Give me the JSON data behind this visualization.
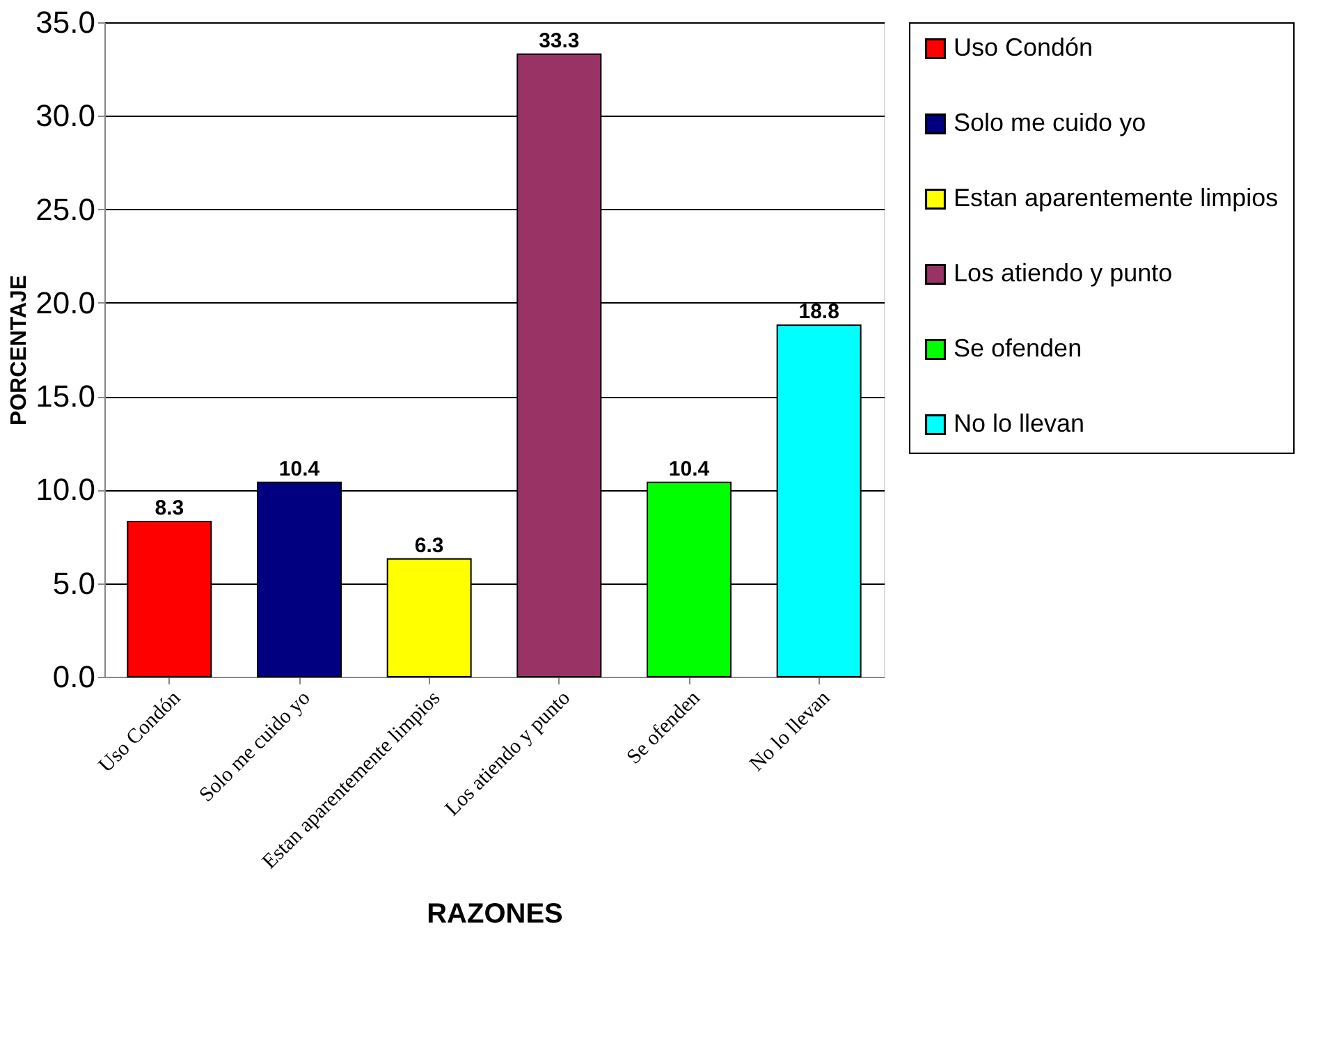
{
  "chart_data": {
    "type": "bar",
    "xlabel": "RAZONES",
    "ylabel": "PORCENTAJE",
    "categories": [
      "Uso Condón",
      "Solo me cuido yo",
      "Estan aparentemente limpios",
      "Los atiendo y punto",
      "Se ofenden",
      "No lo llevan"
    ],
    "series": [
      {
        "name": "Uso Condón",
        "color": "#ff0000",
        "values": [
          8.3,
          null,
          null,
          null,
          null,
          null
        ]
      },
      {
        "name": "Solo me cuido yo",
        "color": "#000080",
        "values": [
          null,
          10.4,
          null,
          null,
          null,
          null
        ]
      },
      {
        "name": "Estan aparentemente limpios",
        "color": "#ffff00",
        "values": [
          null,
          null,
          6.3,
          null,
          null,
          null
        ]
      },
      {
        "name": "Los atiendo y punto",
        "color": "#993366",
        "values": [
          null,
          null,
          null,
          33.3,
          null,
          null
        ]
      },
      {
        "name": "Se ofenden",
        "color": "#00ff00",
        "values": [
          null,
          null,
          null,
          null,
          10.4,
          null
        ]
      },
      {
        "name": "No lo llevan",
        "color": "#00ffff",
        "values": [
          null,
          null,
          null,
          null,
          null,
          18.8
        ]
      }
    ],
    "ylim": [
      0,
      35
    ],
    "yticks": [
      {
        "value": 0,
        "label": "0.0"
      },
      {
        "value": 5,
        "label": "5.0"
      },
      {
        "value": 10,
        "label": "10.0"
      },
      {
        "value": 15,
        "label": "15.0"
      },
      {
        "value": 20,
        "label": "20.0"
      },
      {
        "value": 25,
        "label": "25.0"
      },
      {
        "value": 30,
        "label": "30.0"
      },
      {
        "value": 35,
        "label": "35.0"
      }
    ],
    "grid": "y",
    "legend": "right",
    "data_labels": true
  }
}
